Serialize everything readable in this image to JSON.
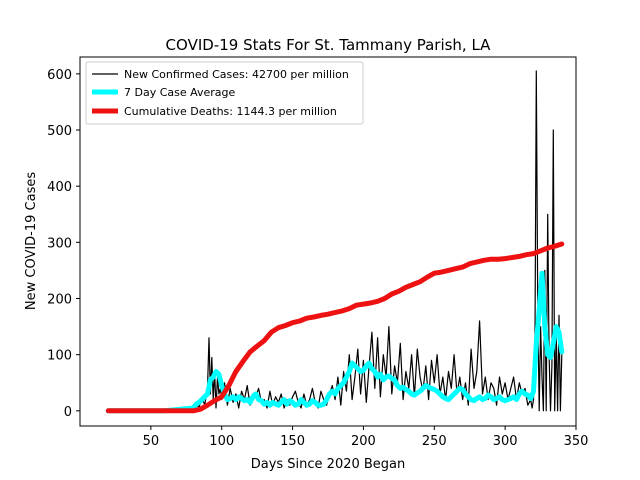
{
  "chart_data": {
    "type": "line",
    "title": "COVID-19 Stats For St. Tammany Parish, LA",
    "xlabel": "Days Since 2020 Began",
    "ylabel": "New COVID-19 Cases",
    "xlim": [
      0,
      350
    ],
    "ylim": [
      -27,
      630
    ],
    "xticks": [
      50,
      100,
      150,
      200,
      250,
      300,
      350
    ],
    "yticks": [
      0,
      100,
      200,
      300,
      400,
      500,
      600
    ],
    "grid": false,
    "legend_position": "top-left",
    "series": [
      {
        "name": "New Confirmed Cases: 42700 per million",
        "color": "#000000",
        "x": [
          20,
          30,
          40,
          50,
          60,
          70,
          75,
          80,
          82,
          84,
          86,
          88,
          90,
          91,
          92,
          93,
          94,
          95,
          96,
          97,
          98,
          99,
          100,
          102,
          104,
          106,
          108,
          110,
          112,
          114,
          116,
          118,
          120,
          122,
          124,
          126,
          128,
          130,
          132,
          134,
          136,
          138,
          140,
          142,
          144,
          146,
          148,
          150,
          152,
          154,
          156,
          158,
          160,
          162,
          164,
          166,
          168,
          170,
          172,
          174,
          176,
          178,
          180,
          182,
          184,
          186,
          188,
          190,
          192,
          194,
          196,
          198,
          200,
          202,
          204,
          206,
          208,
          210,
          212,
          214,
          216,
          218,
          220,
          222,
          224,
          226,
          228,
          230,
          232,
          234,
          236,
          238,
          240,
          242,
          244,
          246,
          248,
          250,
          252,
          254,
          256,
          258,
          260,
          262,
          264,
          266,
          268,
          270,
          272,
          274,
          276,
          278,
          280,
          282,
          284,
          286,
          288,
          290,
          292,
          294,
          296,
          298,
          300,
          302,
          304,
          306,
          308,
          310,
          312,
          314,
          316,
          318,
          319,
          320,
          321,
          322,
          323,
          324,
          325,
          326,
          327,
          328,
          329,
          330,
          331,
          332,
          333,
          334,
          335,
          336,
          337,
          338,
          339,
          340
        ],
        "values": [
          0,
          0,
          0,
          0,
          0,
          0,
          0,
          2,
          15,
          5,
          25,
          10,
          40,
          130,
          30,
          95,
          20,
          70,
          5,
          60,
          30,
          40,
          20,
          50,
          10,
          40,
          15,
          30,
          5,
          35,
          20,
          45,
          10,
          30,
          25,
          40,
          15,
          20,
          5,
          35,
          10,
          25,
          15,
          30,
          5,
          20,
          10,
          25,
          35,
          15,
          5,
          30,
          10,
          20,
          40,
          15,
          5,
          35,
          20,
          10,
          30,
          45,
          20,
          60,
          10,
          70,
          35,
          100,
          20,
          60,
          110,
          30,
          90,
          15,
          80,
          140,
          40,
          130,
          25,
          100,
          60,
          150,
          30,
          80,
          50,
          120,
          20,
          70,
          40,
          100,
          25,
          110,
          60,
          35,
          80,
          20,
          90,
          50,
          100,
          30,
          60,
          20,
          70,
          40,
          100,
          30,
          60,
          20,
          50,
          10,
          110,
          40,
          70,
          160,
          30,
          60,
          20,
          50,
          40,
          10,
          60,
          30,
          50,
          20,
          40,
          60,
          20,
          50,
          30,
          40,
          10,
          20,
          5,
          20,
          100,
          605,
          200,
          0,
          150,
          60,
          0,
          250,
          0,
          350,
          100,
          0,
          80,
          500,
          0,
          140,
          0,
          170,
          0,
          100
        ],
        "line_width": 1.2
      },
      {
        "name": "7 Day Case Average",
        "color": "#00ffff",
        "x": [
          20,
          40,
          60,
          80,
          82,
          84,
          86,
          88,
          90,
          92,
          94,
          96,
          98,
          100,
          102,
          104,
          106,
          108,
          110,
          112,
          114,
          116,
          118,
          120,
          122,
          124,
          126,
          128,
          130,
          132,
          134,
          136,
          138,
          140,
          142,
          144,
          146,
          148,
          150,
          152,
          154,
          156,
          158,
          160,
          162,
          164,
          166,
          168,
          170,
          172,
          174,
          176,
          178,
          180,
          182,
          184,
          186,
          188,
          190,
          192,
          194,
          196,
          198,
          200,
          202,
          204,
          206,
          208,
          210,
          212,
          214,
          216,
          218,
          220,
          222,
          224,
          226,
          228,
          230,
          232,
          234,
          236,
          238,
          240,
          242,
          244,
          246,
          248,
          250,
          252,
          254,
          256,
          258,
          260,
          262,
          264,
          266,
          268,
          270,
          272,
          274,
          276,
          278,
          280,
          282,
          284,
          286,
          288,
          290,
          292,
          294,
          296,
          298,
          300,
          302,
          304,
          306,
          308,
          310,
          312,
          314,
          316,
          318,
          320,
          322,
          324,
          326,
          328,
          330,
          332,
          334,
          336,
          338,
          340
        ],
        "values": [
          0,
          0,
          0,
          5,
          12,
          15,
          20,
          25,
          30,
          55,
          60,
          70,
          65,
          45,
          30,
          20,
          22,
          25,
          20,
          25,
          22,
          18,
          20,
          15,
          25,
          30,
          20,
          18,
          12,
          15,
          10,
          15,
          12,
          10,
          15,
          20,
          12,
          18,
          15,
          10,
          12,
          20,
          15,
          10,
          12,
          18,
          15,
          10,
          10,
          12,
          20,
          30,
          35,
          30,
          40,
          45,
          50,
          60,
          70,
          85,
          80,
          75,
          70,
          72,
          80,
          85,
          75,
          70,
          60,
          65,
          55,
          60,
          62,
          58,
          55,
          45,
          40,
          42,
          38,
          35,
          30,
          28,
          32,
          35,
          40,
          45,
          42,
          40,
          38,
          35,
          30,
          25,
          22,
          20,
          25,
          30,
          35,
          40,
          38,
          30,
          25,
          20,
          18,
          22,
          25,
          20,
          22,
          28,
          25,
          20,
          22,
          25,
          20,
          18,
          20,
          22,
          25,
          20,
          30,
          35,
          30,
          28,
          22,
          35,
          120,
          180,
          245,
          150,
          100,
          95,
          120,
          150,
          140,
          105
        ],
        "line_width": 5
      },
      {
        "name": "Cumulative Deaths: 1144.3 per million",
        "color": "#ee1111",
        "x": [
          20,
          40,
          60,
          80,
          85,
          90,
          95,
          100,
          105,
          110,
          115,
          120,
          125,
          130,
          135,
          140,
          145,
          150,
          155,
          160,
          165,
          170,
          175,
          180,
          185,
          190,
          195,
          200,
          205,
          210,
          215,
          220,
          225,
          230,
          235,
          240,
          245,
          250,
          255,
          260,
          265,
          270,
          275,
          280,
          285,
          290,
          295,
          300,
          305,
          310,
          315,
          320,
          325,
          330,
          335,
          340
        ],
        "values": [
          0,
          0,
          0,
          0,
          3,
          10,
          18,
          25,
          45,
          70,
          88,
          105,
          115,
          125,
          140,
          148,
          152,
          157,
          160,
          165,
          167,
          170,
          172,
          175,
          178,
          182,
          188,
          190,
          192,
          195,
          200,
          208,
          213,
          220,
          225,
          230,
          238,
          245,
          247,
          250,
          253,
          256,
          262,
          265,
          268,
          270,
          270,
          271,
          273,
          275,
          278,
          280,
          285,
          290,
          293,
          297
        ],
        "line_width": 5
      }
    ]
  }
}
